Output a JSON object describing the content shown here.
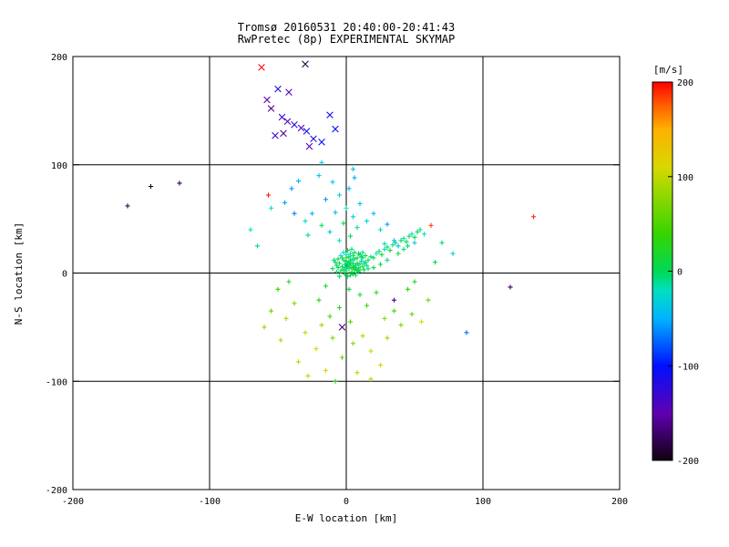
{
  "title": {
    "line1": "Tromsø 20160531 20:40:00-20:41:43",
    "line2": "RwPretec (8p) EXPERIMENTAL SKYMAP"
  },
  "axes": {
    "xlabel": "E-W location [km]",
    "ylabel": "N-S location [km]",
    "xlim": [
      -200,
      200
    ],
    "ylim": [
      -200,
      200
    ],
    "xticks": [
      -200,
      -100,
      0,
      100,
      200
    ],
    "yticks": [
      -200,
      -100,
      0,
      100,
      200
    ],
    "grid_values": [
      -100,
      0,
      100
    ],
    "grid_color": "#000000",
    "frame_color": "#000000"
  },
  "colorbar": {
    "label": "[m/s]",
    "label_color": "#e00000",
    "min": -200,
    "max": 200,
    "ticks": [
      200,
      100,
      0,
      -100,
      -200
    ],
    "stops": [
      [
        -200,
        "#100010"
      ],
      [
        -150,
        "#6000b0"
      ],
      [
        -100,
        "#0010ff"
      ],
      [
        -50,
        "#00b4ff"
      ],
      [
        -20,
        "#00e0c0"
      ],
      [
        0,
        "#00d855"
      ],
      [
        40,
        "#38d400"
      ],
      [
        80,
        "#90d800"
      ],
      [
        110,
        "#d8d800"
      ],
      [
        150,
        "#ffb000"
      ],
      [
        175,
        "#ff6000"
      ],
      [
        200,
        "#ff0000"
      ]
    ]
  },
  "chart_data": {
    "type": "scatter",
    "value_dimension": "doppler velocity [m/s]",
    "series": [
      {
        "name": "plus-markers",
        "marker": "plus",
        "points": [
          [
            0,
            2,
            5
          ],
          [
            2,
            4,
            -5
          ],
          [
            4,
            1,
            10
          ],
          [
            -2,
            3,
            0
          ],
          [
            1,
            6,
            8
          ],
          [
            3,
            8,
            -8
          ],
          [
            5,
            5,
            12
          ],
          [
            -3,
            6,
            3
          ],
          [
            -1,
            8,
            -3
          ],
          [
            2,
            10,
            6
          ],
          [
            6,
            3,
            15
          ],
          [
            7,
            7,
            -10
          ],
          [
            -4,
            2,
            5
          ],
          [
            0,
            11,
            0
          ],
          [
            4,
            12,
            -12
          ],
          [
            8,
            9,
            8
          ],
          [
            -6,
            5,
            10
          ],
          [
            -2,
            12,
            -5
          ],
          [
            3,
            -2,
            5
          ],
          [
            5,
            -1,
            18
          ],
          [
            1,
            -3,
            -6
          ],
          [
            -1,
            -1,
            8
          ],
          [
            6,
            13,
            0
          ],
          [
            9,
            5,
            -15
          ],
          [
            10,
            8,
            5
          ],
          [
            -5,
            9,
            12
          ],
          [
            -7,
            7,
            -8
          ],
          [
            2,
            15,
            4
          ],
          [
            0,
            17,
            -20
          ],
          [
            -3,
            14,
            10
          ],
          [
            5,
            16,
            -5
          ],
          [
            8,
            14,
            6
          ],
          [
            11,
            11,
            -10
          ],
          [
            12,
            6,
            15
          ],
          [
            -8,
            10,
            0
          ],
          [
            -5,
            -3,
            8
          ],
          [
            7,
            -2,
            -12
          ],
          [
            9,
            1,
            5
          ],
          [
            12,
            14,
            -6
          ],
          [
            14,
            10,
            10
          ],
          [
            3,
            18,
            -15
          ],
          [
            6,
            19,
            5
          ],
          [
            -2,
            19,
            -25
          ],
          [
            10,
            17,
            8
          ],
          [
            13,
            3,
            0
          ],
          [
            15,
            7,
            -10
          ],
          [
            -10,
            4,
            6
          ],
          [
            -9,
            12,
            -5
          ],
          [
            1,
            21,
            12
          ],
          [
            4,
            22,
            -8
          ],
          [
            7,
            4,
            2
          ],
          [
            5,
            9,
            -2
          ],
          [
            2,
            7,
            14
          ],
          [
            -1,
            5,
            -18
          ],
          [
            8,
            2,
            4
          ],
          [
            11,
            15,
            -4
          ],
          [
            0,
            14,
            22
          ],
          [
            -4,
            16,
            -30
          ],
          [
            6,
            6,
            9
          ],
          [
            3,
            12,
            -7
          ],
          [
            9,
            18,
            3
          ],
          [
            13,
            9,
            -22
          ],
          [
            4,
            5,
            16
          ],
          [
            1,
            9,
            -4
          ],
          [
            -6,
            13,
            7
          ],
          [
            16,
            4,
            -5
          ],
          [
            14,
            16,
            12
          ],
          [
            -7,
            1,
            -9
          ],
          [
            10,
            3,
            20
          ],
          [
            12,
            19,
            -14
          ],
          [
            16,
            12,
            0
          ],
          [
            18,
            15,
            -10
          ],
          [
            20,
            14,
            5
          ],
          [
            22,
            18,
            -20
          ],
          [
            24,
            20,
            0
          ],
          [
            26,
            17,
            10
          ],
          [
            28,
            22,
            -30
          ],
          [
            30,
            24,
            0
          ],
          [
            32,
            21,
            5
          ],
          [
            34,
            26,
            -10
          ],
          [
            36,
            28,
            0
          ],
          [
            38,
            25,
            -40
          ],
          [
            40,
            30,
            5
          ],
          [
            42,
            32,
            -15
          ],
          [
            44,
            29,
            0
          ],
          [
            46,
            34,
            10
          ],
          [
            48,
            36,
            -25
          ],
          [
            50,
            33,
            0
          ],
          [
            52,
            38,
            5
          ],
          [
            54,
            40,
            -10
          ],
          [
            45,
            25,
            -5
          ],
          [
            38,
            18,
            10
          ],
          [
            30,
            12,
            -5
          ],
          [
            25,
            8,
            0
          ],
          [
            20,
            5,
            5
          ],
          [
            57,
            36,
            -20
          ],
          [
            50,
            28,
            -35
          ],
          [
            42,
            22,
            -10
          ],
          [
            35,
            30,
            -45
          ],
          [
            28,
            27,
            -15
          ],
          [
            -5,
            30,
            -20
          ],
          [
            3,
            34,
            0
          ],
          [
            -12,
            38,
            -40
          ],
          [
            8,
            42,
            -10
          ],
          [
            -2,
            46,
            5
          ],
          [
            5,
            52,
            -30
          ],
          [
            -8,
            56,
            -50
          ],
          [
            0,
            60,
            -20
          ],
          [
            10,
            64,
            -40
          ],
          [
            -15,
            68,
            -60
          ],
          [
            -5,
            72,
            -30
          ],
          [
            2,
            78,
            -50
          ],
          [
            -10,
            84,
            -40
          ],
          [
            6,
            88,
            -55
          ],
          [
            -25,
            55,
            -45
          ],
          [
            -30,
            48,
            -20
          ],
          [
            -18,
            44,
            0
          ],
          [
            15,
            48,
            -30
          ],
          [
            20,
            55,
            -40
          ],
          [
            -35,
            85,
            -50
          ],
          [
            -45,
            65,
            -55
          ],
          [
            -20,
            90,
            -45
          ],
          [
            -40,
            78,
            -60
          ],
          [
            -55,
            60,
            -20
          ],
          [
            -18,
            102,
            -35
          ],
          [
            5,
            96,
            -40
          ],
          [
            25,
            40,
            -25
          ],
          [
            30,
            45,
            -55
          ],
          [
            -28,
            35,
            -10
          ],
          [
            -38,
            55,
            -65
          ],
          [
            -50,
            -15,
            40
          ],
          [
            -38,
            -28,
            70
          ],
          [
            -44,
            -42,
            90
          ],
          [
            -30,
            -55,
            100
          ],
          [
            -22,
            -70,
            110
          ],
          [
            -35,
            -82,
            95
          ],
          [
            -15,
            -90,
            105
          ],
          [
            -8,
            -100,
            30
          ],
          [
            -3,
            -78,
            60
          ],
          [
            5,
            -65,
            80
          ],
          [
            12,
            -58,
            90
          ],
          [
            18,
            -72,
            100
          ],
          [
            25,
            -85,
            110
          ],
          [
            8,
            -92,
            95
          ],
          [
            30,
            -60,
            85
          ],
          [
            40,
            -48,
            70
          ],
          [
            48,
            -38,
            60
          ],
          [
            55,
            -45,
            110
          ],
          [
            35,
            -35,
            50
          ],
          [
            -12,
            -40,
            45
          ],
          [
            -20,
            -25,
            30
          ],
          [
            -5,
            -32,
            20
          ],
          [
            3,
            -45,
            55
          ],
          [
            15,
            -30,
            40
          ],
          [
            22,
            -18,
            25
          ],
          [
            60,
            -25,
            65
          ],
          [
            -60,
            -50,
            80
          ],
          [
            -55,
            -35,
            60
          ],
          [
            -48,
            -62,
            90
          ],
          [
            2,
            -15,
            10
          ],
          [
            10,
            -20,
            15
          ],
          [
            -15,
            -12,
            20
          ],
          [
            28,
            -42,
            75
          ],
          [
            -28,
            -95,
            100
          ],
          [
            18,
            -98,
            90
          ],
          [
            -10,
            -60,
            70
          ],
          [
            -18,
            -48,
            85
          ],
          [
            45,
            -15,
            35
          ],
          [
            50,
            -8,
            20
          ],
          [
            -42,
            -8,
            25
          ],
          [
            -160,
            62,
            -185
          ],
          [
            -143,
            80,
            -190
          ],
          [
            -122,
            83,
            -180
          ],
          [
            -57,
            72,
            195
          ],
          [
            137,
            52,
            190
          ],
          [
            120,
            -13,
            -175
          ],
          [
            35,
            -25,
            -160
          ],
          [
            88,
            -55,
            -70
          ],
          [
            62,
            44,
            185
          ],
          [
            70,
            28,
            -5
          ],
          [
            78,
            18,
            -30
          ],
          [
            65,
            10,
            0
          ],
          [
            -70,
            40,
            -20
          ],
          [
            -65,
            25,
            -10
          ]
        ]
      },
      {
        "name": "x-markers",
        "marker": "x",
        "points": [
          [
            -62,
            190,
            200
          ],
          [
            -30,
            193,
            -185
          ],
          [
            -50,
            170,
            -120
          ],
          [
            -42,
            167,
            -140
          ],
          [
            -55,
            152,
            -160
          ],
          [
            -47,
            144,
            -130
          ],
          [
            -43,
            140,
            -150
          ],
          [
            -38,
            137,
            -120
          ],
          [
            -33,
            134,
            -140
          ],
          [
            -29,
            131,
            -110
          ],
          [
            -46,
            129,
            -160
          ],
          [
            -52,
            127,
            -130
          ],
          [
            -24,
            124,
            -120
          ],
          [
            -18,
            121,
            -100
          ],
          [
            -27,
            117,
            -140
          ],
          [
            -12,
            146,
            -110
          ],
          [
            -8,
            133,
            -100
          ],
          [
            -58,
            160,
            -150
          ],
          [
            -3,
            -50,
            -165
          ]
        ]
      }
    ]
  }
}
